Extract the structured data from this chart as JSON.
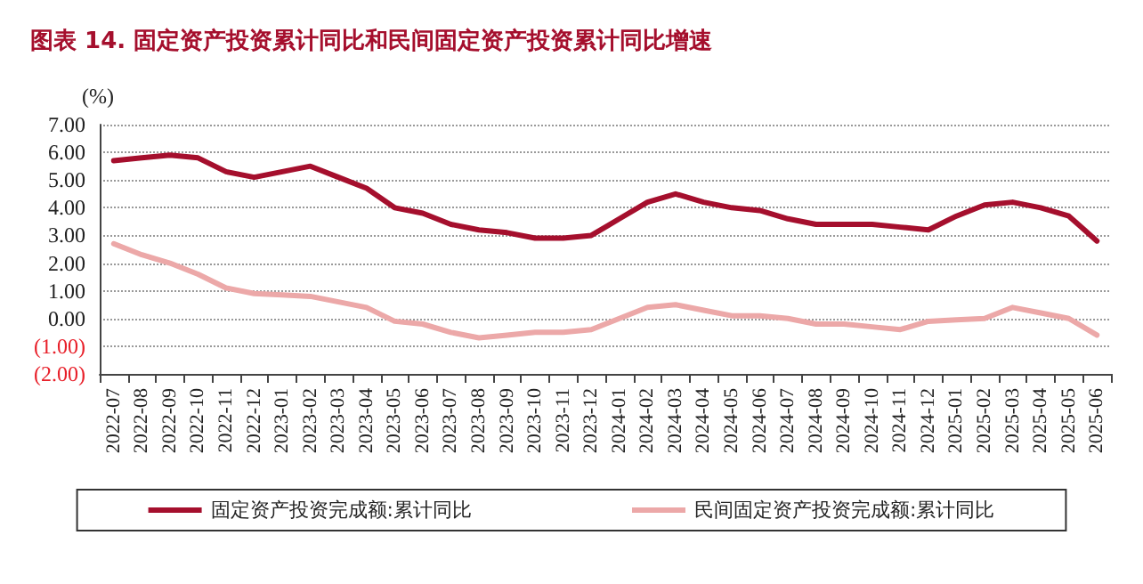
{
  "chart_data": {
    "type": "line",
    "title": "图表 14. 固定资产投资累计同比和民间固定资产投资累计同比增速",
    "ylabel": "(%)",
    "categories": [
      "2022-07",
      "2022-08",
      "2022-09",
      "2022-10",
      "2022-11",
      "2022-12",
      "2023-01",
      "2023-02",
      "2023-03",
      "2023-04",
      "2023-05",
      "2023-06",
      "2023-07",
      "2023-08",
      "2023-09",
      "2023-10",
      "2023-11",
      "2023-12",
      "2024-01",
      "2024-02",
      "2024-03",
      "2024-04",
      "2024-05",
      "2024-06",
      "2024-07",
      "2024-08",
      "2024-09",
      "2024-10",
      "2024-11",
      "2024-12",
      "2025-01",
      "2025-02",
      "2025-03",
      "2025-04",
      "2025-05",
      "2025-06"
    ],
    "series": [
      {
        "name": "固定资产投资完成额:累计同比",
        "color": "#a50f2d",
        "values": [
          5.7,
          5.8,
          5.9,
          5.8,
          5.3,
          5.1,
          5.3,
          5.5,
          5.1,
          4.7,
          4.0,
          3.8,
          3.4,
          3.2,
          3.1,
          2.9,
          2.9,
          3.0,
          3.6,
          4.2,
          4.5,
          4.2,
          4.0,
          3.9,
          3.6,
          3.4,
          3.4,
          3.4,
          3.3,
          3.2,
          3.7,
          4.1,
          4.2,
          4.0,
          3.7,
          2.8
        ]
      },
      {
        "name": "民间固定资产投资完成额:累计同比",
        "color": "#eca8a8",
        "values": [
          2.7,
          2.3,
          2.0,
          1.6,
          1.1,
          0.9,
          0.85,
          0.8,
          0.6,
          0.4,
          -0.1,
          -0.2,
          -0.5,
          -0.7,
          -0.6,
          -0.5,
          -0.5,
          -0.4,
          0.0,
          0.4,
          0.5,
          0.3,
          0.1,
          0.1,
          0.0,
          -0.2,
          -0.2,
          -0.3,
          -0.4,
          -0.1,
          -0.05,
          0.0,
          0.4,
          0.2,
          0.0,
          -0.6
        ]
      }
    ],
    "ylim": [
      -2,
      7
    ],
    "yticks": [
      {
        "value": -2,
        "label": "(2.00)"
      },
      {
        "value": -1,
        "label": "(1.00)"
      },
      {
        "value": 0,
        "label": "0.00"
      },
      {
        "value": 1,
        "label": "1.00"
      },
      {
        "value": 2,
        "label": "2.00"
      },
      {
        "value": 3,
        "label": "3.00"
      },
      {
        "value": 4,
        "label": "4.00"
      },
      {
        "value": 5,
        "label": "5.00"
      },
      {
        "value": 6,
        "label": "6.00"
      },
      {
        "value": 7,
        "label": "7.00"
      }
    ],
    "grid": "y",
    "legend": "bottom",
    "marker": "none",
    "line_style": "solid"
  }
}
